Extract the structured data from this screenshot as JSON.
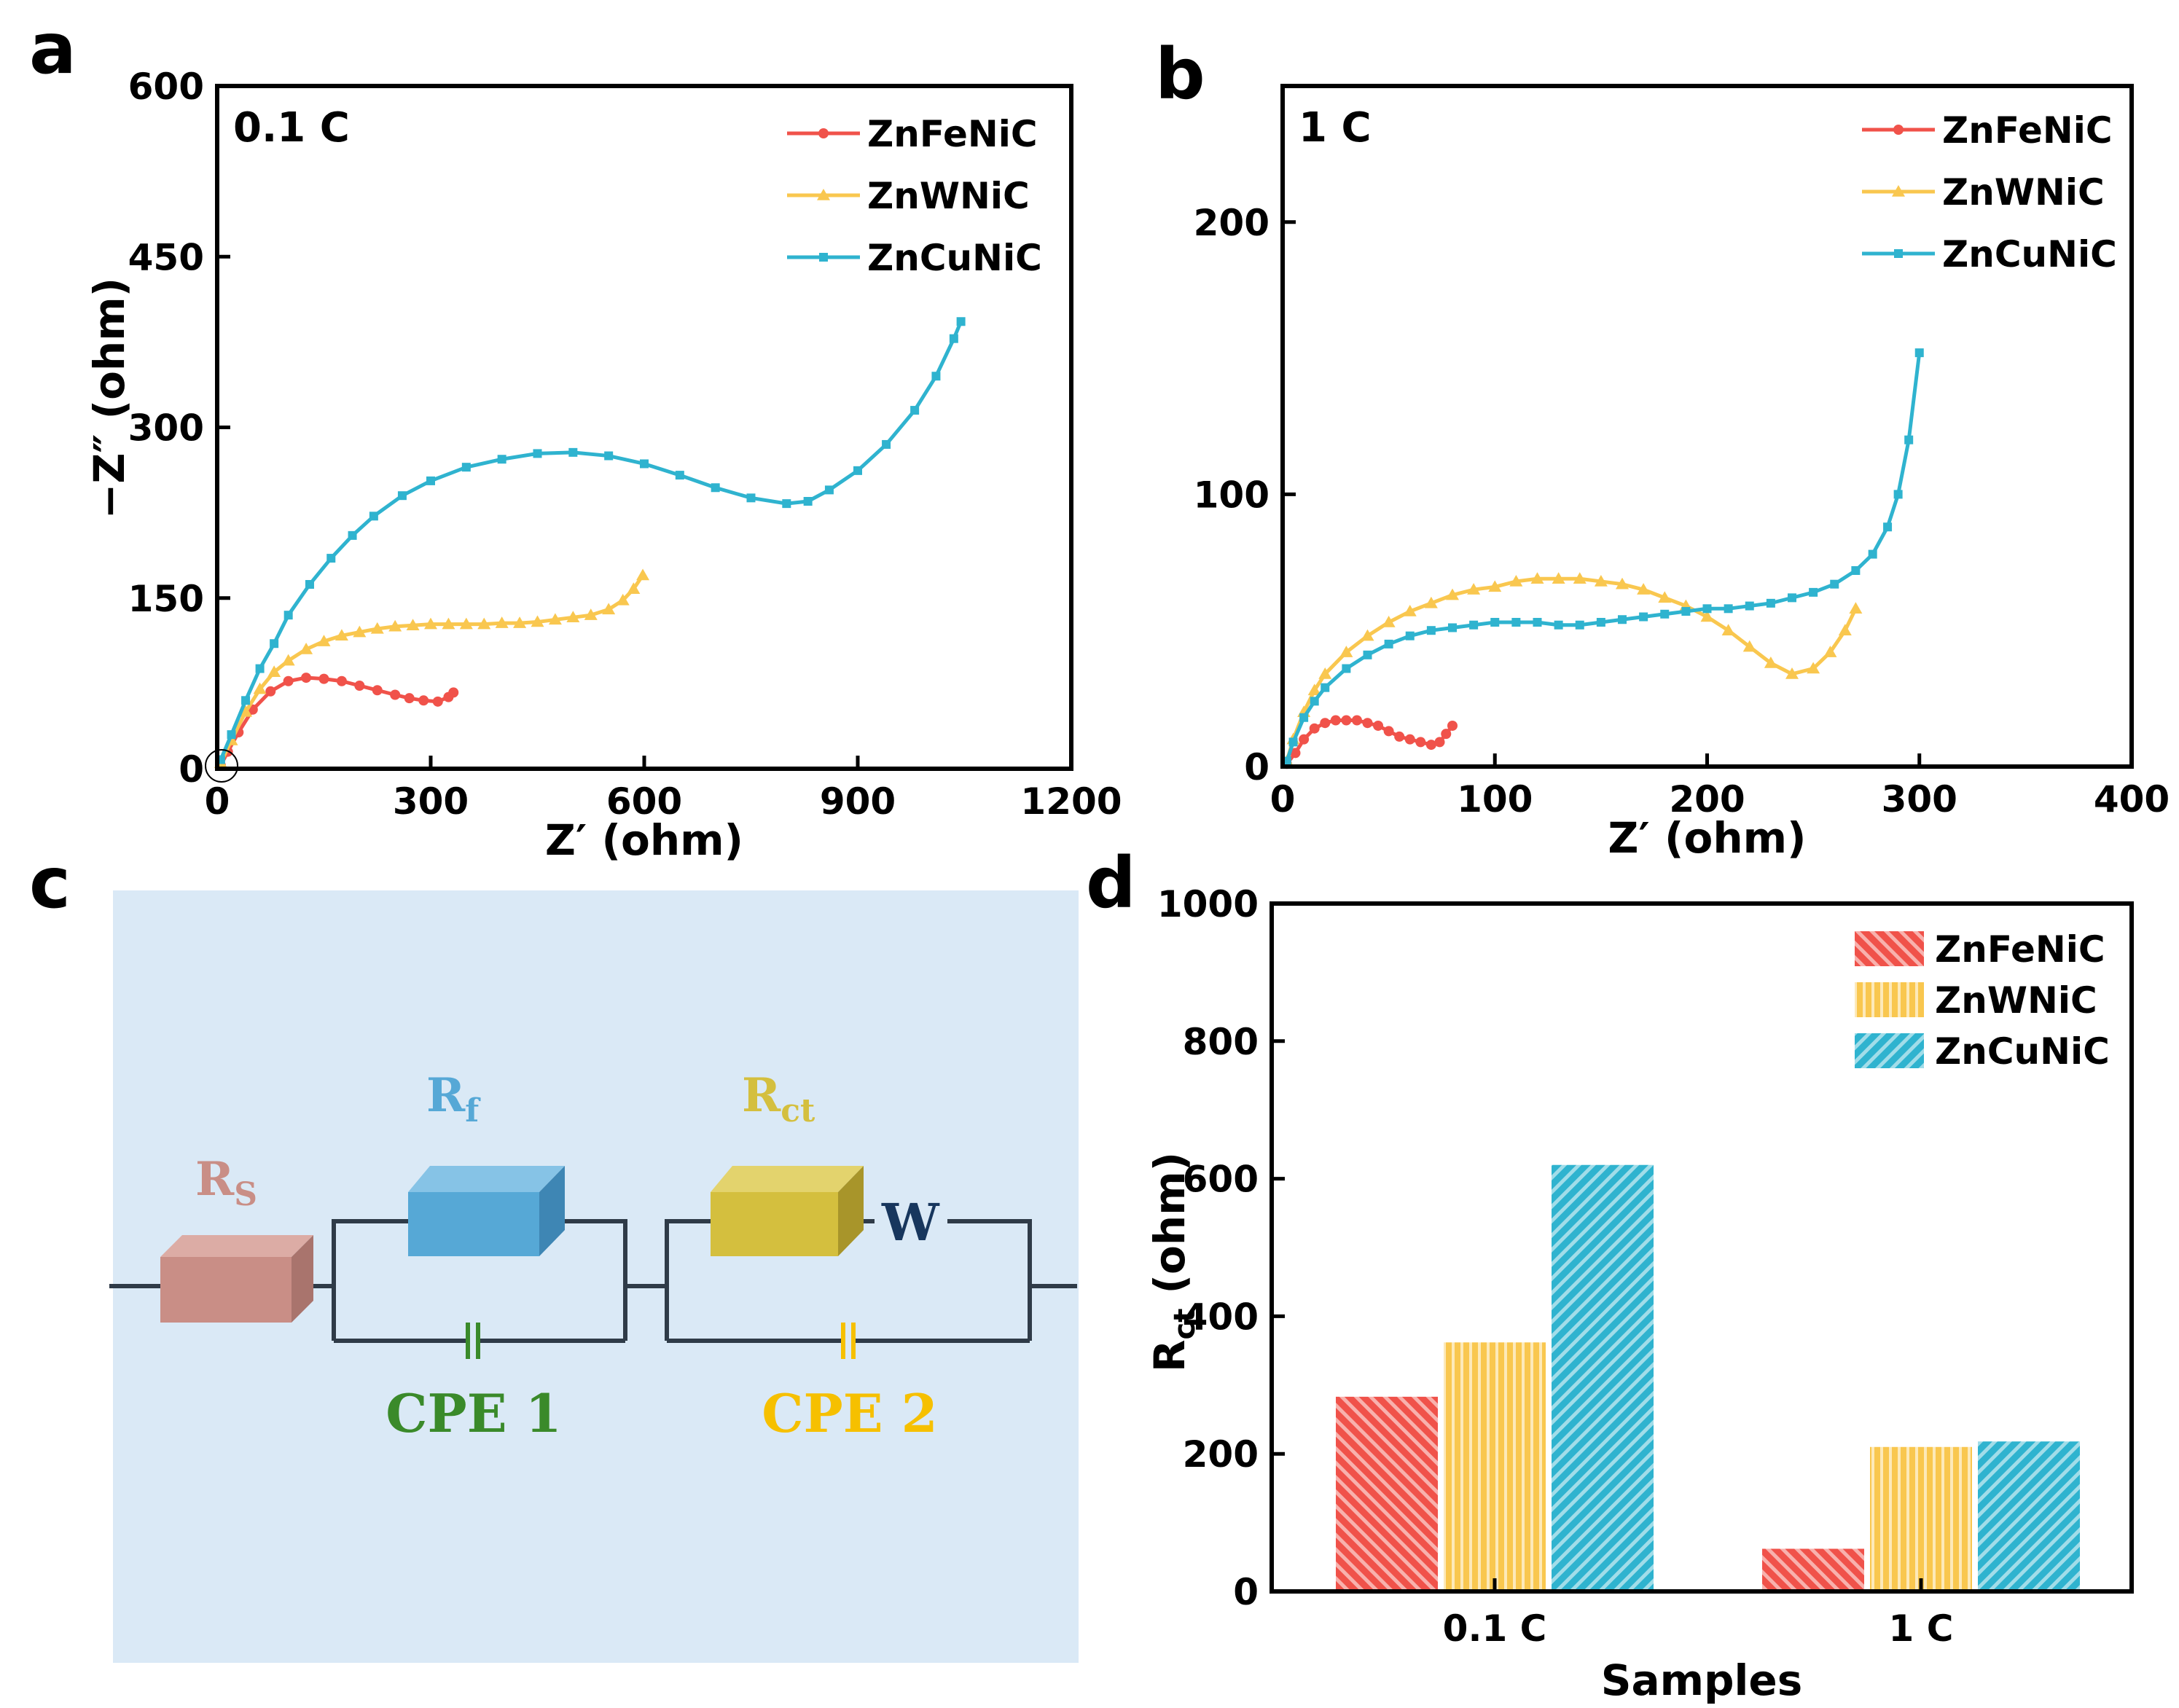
{
  "colors": {
    "ZnFeNiC": "#f0524a",
    "ZnWNiC": "#f9c74f",
    "ZnCuNiC": "#2fb3cf",
    "circuit_bg": "#dae9f6",
    "wire": "#2f3b48",
    "Rs": "#c98e86",
    "Rf": "#56a8d6",
    "Rct": "#d4bf3e",
    "W": "#17365d",
    "CPE1": "#3a8a2a",
    "CPE2": "#f6c000"
  },
  "panels": {
    "a": "a",
    "b": "b",
    "c": "c",
    "d": "d"
  },
  "circuit": {
    "Rs_main": "R",
    "Rs_sub": "S",
    "Rf_main": "R",
    "Rf_sub": "f",
    "Rct_main": "R",
    "Rct_sub": "ct",
    "W": "W",
    "cpe1": "CPE 1",
    "cpe2": "CPE 2"
  },
  "chart_data": [
    {
      "id": "a",
      "type": "line",
      "condition": "0.1 C",
      "xlabel": "Z′ (ohm)",
      "ylabel": "−Z″ (ohm)",
      "xlim": [
        0,
        1200
      ],
      "ylim": [
        0,
        600
      ],
      "xticks": [
        0,
        300,
        600,
        900,
        1200
      ],
      "yticks": [
        0,
        150,
        300,
        450,
        600
      ],
      "legend": [
        "ZnFeNiC",
        "ZnWNiC",
        "ZnCuNiC"
      ],
      "series": [
        {
          "name": "ZnFeNiC",
          "marker": "circle",
          "points": [
            [
              5,
              3
            ],
            [
              15,
              15
            ],
            [
              30,
              32
            ],
            [
              50,
              52
            ],
            [
              75,
              68
            ],
            [
              100,
              77
            ],
            [
              125,
              80
            ],
            [
              150,
              79
            ],
            [
              175,
              77
            ],
            [
              200,
              73
            ],
            [
              225,
              69
            ],
            [
              250,
              65
            ],
            [
              270,
              62
            ],
            [
              290,
              60
            ],
            [
              310,
              59
            ],
            [
              325,
              63
            ],
            [
              332,
              67
            ]
          ]
        },
        {
          "name": "ZnWNiC",
          "marker": "triangle",
          "points": [
            [
              5,
              5
            ],
            [
              20,
              25
            ],
            [
              40,
              50
            ],
            [
              60,
              70
            ],
            [
              80,
              85
            ],
            [
              100,
              95
            ],
            [
              125,
              105
            ],
            [
              150,
              112
            ],
            [
              175,
              117
            ],
            [
              200,
              120
            ],
            [
              225,
              123
            ],
            [
              250,
              125
            ],
            [
              275,
              126
            ],
            [
              300,
              127
            ],
            [
              325,
              127
            ],
            [
              350,
              127
            ],
            [
              375,
              127
            ],
            [
              400,
              128
            ],
            [
              425,
              128
            ],
            [
              450,
              129
            ],
            [
              475,
              131
            ],
            [
              500,
              133
            ],
            [
              525,
              135
            ],
            [
              550,
              140
            ],
            [
              570,
              148
            ],
            [
              585,
              158
            ],
            [
              598,
              170
            ]
          ]
        },
        {
          "name": "ZnCuNiC",
          "marker": "square",
          "points": [
            [
              5,
              8
            ],
            [
              20,
              30
            ],
            [
              40,
              60
            ],
            [
              60,
              88
            ],
            [
              80,
              110
            ],
            [
              100,
              135
            ],
            [
              130,
              162
            ],
            [
              160,
              185
            ],
            [
              190,
              205
            ],
            [
              220,
              222
            ],
            [
              260,
              240
            ],
            [
              300,
              253
            ],
            [
              350,
              265
            ],
            [
              400,
              272
            ],
            [
              450,
              277
            ],
            [
              500,
              278
            ],
            [
              550,
              275
            ],
            [
              600,
              268
            ],
            [
              650,
              258
            ],
            [
              700,
              247
            ],
            [
              750,
              238
            ],
            [
              800,
              233
            ],
            [
              830,
              235
            ],
            [
              860,
              245
            ],
            [
              900,
              262
            ],
            [
              940,
              285
            ],
            [
              980,
              315
            ],
            [
              1010,
              345
            ],
            [
              1035,
              378
            ],
            [
              1045,
              393
            ]
          ]
        }
      ]
    },
    {
      "id": "b",
      "type": "line",
      "condition": "1 C",
      "xlabel": "Z′ (ohm)",
      "ylabel": "",
      "xlim": [
        0,
        400
      ],
      "ylim": [
        0,
        250
      ],
      "xticks": [
        0,
        100,
        200,
        300,
        400
      ],
      "yticks": [
        0,
        100,
        200
      ],
      "legend": [
        "ZnFeNiC",
        "ZnWNiC",
        "ZnCuNiC"
      ],
      "series": [
        {
          "name": "ZnFeNiC",
          "marker": "circle",
          "points": [
            [
              2,
              1
            ],
            [
              6,
              5
            ],
            [
              10,
              10
            ],
            [
              15,
              14
            ],
            [
              20,
              16
            ],
            [
              25,
              17
            ],
            [
              30,
              17
            ],
            [
              35,
              17
            ],
            [
              40,
              16
            ],
            [
              45,
              15
            ],
            [
              50,
              13
            ],
            [
              55,
              11
            ],
            [
              60,
              10
            ],
            [
              65,
              9
            ],
            [
              70,
              8
            ],
            [
              74,
              9
            ],
            [
              77,
              12
            ],
            [
              80,
              15
            ]
          ]
        },
        {
          "name": "ZnWNiC",
          "marker": "triangle",
          "points": [
            [
              2,
              2
            ],
            [
              5,
              10
            ],
            [
              10,
              20
            ],
            [
              15,
              28
            ],
            [
              20,
              34
            ],
            [
              30,
              42
            ],
            [
              40,
              48
            ],
            [
              50,
              53
            ],
            [
              60,
              57
            ],
            [
              70,
              60
            ],
            [
              80,
              63
            ],
            [
              90,
              65
            ],
            [
              100,
              66
            ],
            [
              110,
              68
            ],
            [
              120,
              69
            ],
            [
              130,
              69
            ],
            [
              140,
              69
            ],
            [
              150,
              68
            ],
            [
              160,
              67
            ],
            [
              170,
              65
            ],
            [
              180,
              62
            ],
            [
              190,
              59
            ],
            [
              200,
              55
            ],
            [
              210,
              50
            ],
            [
              220,
              44
            ],
            [
              230,
              38
            ],
            [
              240,
              34
            ],
            [
              250,
              36
            ],
            [
              258,
              42
            ],
            [
              265,
              50
            ],
            [
              270,
              58
            ]
          ]
        },
        {
          "name": "ZnCuNiC",
          "marker": "square",
          "points": [
            [
              2,
              2
            ],
            [
              5,
              9
            ],
            [
              10,
              18
            ],
            [
              15,
              24
            ],
            [
              20,
              29
            ],
            [
              30,
              36
            ],
            [
              40,
              41
            ],
            [
              50,
              45
            ],
            [
              60,
              48
            ],
            [
              70,
              50
            ],
            [
              80,
              51
            ],
            [
              90,
              52
            ],
            [
              100,
              53
            ],
            [
              110,
              53
            ],
            [
              120,
              53
            ],
            [
              130,
              52
            ],
            [
              140,
              52
            ],
            [
              150,
              53
            ],
            [
              160,
              54
            ],
            [
              170,
              55
            ],
            [
              180,
              56
            ],
            [
              190,
              57
            ],
            [
              200,
              58
            ],
            [
              210,
              58
            ],
            [
              220,
              59
            ],
            [
              230,
              60
            ],
            [
              240,
              62
            ],
            [
              250,
              64
            ],
            [
              260,
              67
            ],
            [
              270,
              72
            ],
            [
              278,
              78
            ],
            [
              285,
              88
            ],
            [
              290,
              100
            ],
            [
              295,
              120
            ],
            [
              300,
              152
            ]
          ]
        }
      ]
    },
    {
      "id": "d",
      "type": "bar",
      "xlabel": "Samples",
      "ylabel_main": "R",
      "ylabel_sub": "ct",
      "ylabel_unit": " (ohm)",
      "ylim": [
        0,
        1000
      ],
      "yticks": [
        0,
        200,
        400,
        600,
        800,
        1000
      ],
      "categories": [
        "0.1 C",
        "1 C"
      ],
      "legend": [
        "ZnFeNiC",
        "ZnWNiC",
        "ZnCuNiC"
      ],
      "series": [
        {
          "name": "ZnFeNiC",
          "values": [
            283,
            62
          ]
        },
        {
          "name": "ZnWNiC",
          "values": [
            362,
            210
          ]
        },
        {
          "name": "ZnCuNiC",
          "values": [
            620,
            218
          ]
        }
      ]
    }
  ]
}
